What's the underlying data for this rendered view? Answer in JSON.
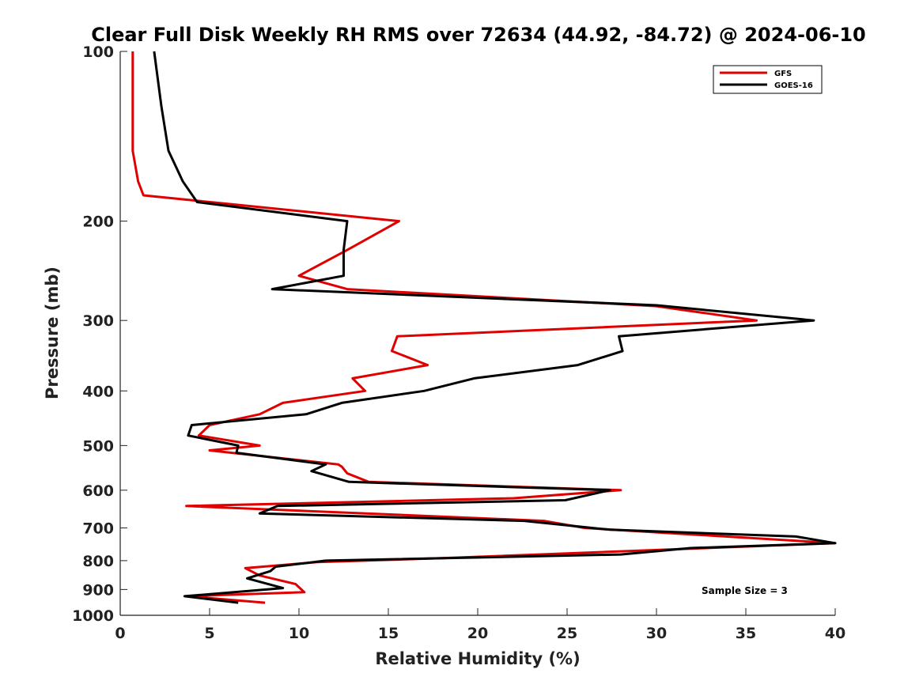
{
  "chart_data": {
    "type": "line",
    "title": "Clear Full Disk Weekly RH RMS over 72634 (44.92, -84.72) @ 2024-06-10",
    "xlabel": "Relative Humidity (%)",
    "ylabel": "Pressure (mb)",
    "xlim": [
      0,
      40
    ],
    "ylim": [
      100,
      1000
    ],
    "yscale": "log-reversed",
    "x_ticks": [
      0,
      5,
      10,
      15,
      20,
      25,
      30,
      35,
      40
    ],
    "y_ticks": [
      100,
      200,
      300,
      400,
      500,
      600,
      700,
      800,
      900,
      1000
    ],
    "legend_position": "top-right",
    "annotation": "Sample Size = 3",
    "series": [
      {
        "name": "GFS",
        "color": "#e00000",
        "points": [
          [
            0.7,
            100
          ],
          [
            0.7,
            125
          ],
          [
            0.7,
            150
          ],
          [
            1.0,
            170
          ],
          [
            1.3,
            180
          ],
          [
            15.6,
            200
          ],
          [
            12.7,
            225
          ],
          [
            10.0,
            250
          ],
          [
            12.7,
            264
          ],
          [
            30.0,
            283
          ],
          [
            35.6,
            300
          ],
          [
            15.5,
            320
          ],
          [
            15.2,
            340
          ],
          [
            17.2,
            360
          ],
          [
            13.0,
            380
          ],
          [
            13.7,
            400
          ],
          [
            9.1,
            420
          ],
          [
            7.8,
            440
          ],
          [
            5.0,
            460
          ],
          [
            4.4,
            480
          ],
          [
            7.8,
            500
          ],
          [
            5.0,
            510
          ],
          [
            12.2,
            540
          ],
          [
            12.4,
            545
          ],
          [
            12.7,
            560
          ],
          [
            13.9,
            580
          ],
          [
            28.0,
            600
          ],
          [
            22.0,
            620
          ],
          [
            3.7,
            640
          ],
          [
            23.7,
            680
          ],
          [
            26.0,
            700
          ],
          [
            40.0,
            745
          ],
          [
            18.0,
            792
          ],
          [
            11.0,
            805
          ],
          [
            7.0,
            825
          ],
          [
            7.8,
            850
          ],
          [
            9.8,
            880
          ],
          [
            10.3,
            910
          ],
          [
            3.7,
            925
          ],
          [
            8.1,
            950
          ]
        ]
      },
      {
        "name": "GOES-16",
        "color": "#000000",
        "points": [
          [
            1.9,
            100
          ],
          [
            2.3,
            125
          ],
          [
            2.7,
            150
          ],
          [
            3.5,
            170
          ],
          [
            4.3,
            185
          ],
          [
            12.7,
            200
          ],
          [
            12.5,
            225
          ],
          [
            12.5,
            250
          ],
          [
            8.5,
            264
          ],
          [
            30.0,
            282
          ],
          [
            38.8,
            300
          ],
          [
            27.9,
            320
          ],
          [
            28.1,
            340
          ],
          [
            25.6,
            360
          ],
          [
            19.8,
            380
          ],
          [
            17.0,
            400
          ],
          [
            12.4,
            420
          ],
          [
            10.4,
            440
          ],
          [
            4.0,
            460
          ],
          [
            3.8,
            480
          ],
          [
            6.6,
            500
          ],
          [
            6.5,
            515
          ],
          [
            11.5,
            540
          ],
          [
            10.7,
            555
          ],
          [
            12.8,
            580
          ],
          [
            27.4,
            600
          ],
          [
            24.9,
            625
          ],
          [
            8.8,
            640
          ],
          [
            7.8,
            660
          ],
          [
            22.6,
            680
          ],
          [
            27.4,
            705
          ],
          [
            37.8,
            725
          ],
          [
            40.0,
            745
          ],
          [
            31.9,
            760
          ],
          [
            28.0,
            780
          ],
          [
            11.5,
            800
          ],
          [
            8.7,
            820
          ],
          [
            8.4,
            835
          ],
          [
            7.1,
            860
          ],
          [
            9.1,
            895
          ],
          [
            3.6,
            925
          ],
          [
            6.6,
            950
          ]
        ]
      }
    ]
  }
}
